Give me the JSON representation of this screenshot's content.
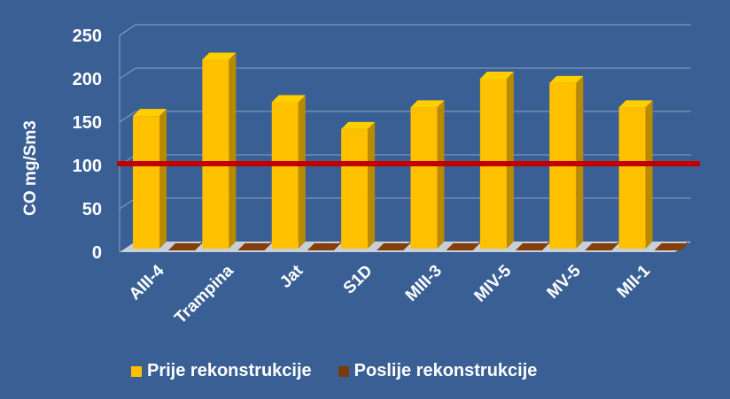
{
  "chart_data": {
    "type": "bar",
    "categories": [
      "AIII-4",
      "Trampina",
      "Jat",
      "S1D",
      "MIII-3",
      "MIV-5",
      "MV-5",
      "MII-1"
    ],
    "series": [
      {
        "name": "Prije rekonstrukcije",
        "values": [
          157,
          222,
          173,
          142,
          167,
          200,
          195,
          167
        ],
        "color": "#ffc000"
      },
      {
        "name": "Poslije rekonstrukcije",
        "values": [
          2,
          2,
          2,
          2,
          2,
          2,
          2,
          2
        ],
        "color": "#7a3a0a"
      }
    ],
    "reference_line": {
      "value": 100,
      "color": "#c00000"
    },
    "ylabel": "CO mg/Sm3",
    "ylim": [
      0,
      250
    ],
    "yticks": [
      0,
      50,
      100,
      150,
      200,
      250
    ],
    "grid": true,
    "legend_position": "bottom",
    "background_color": "#3a5f95"
  }
}
